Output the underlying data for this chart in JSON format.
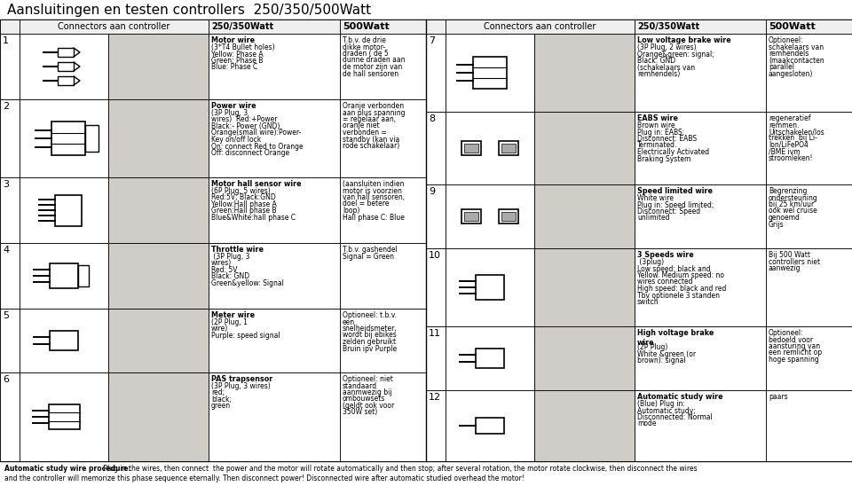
{
  "title": "Aansluitingen en testen controllers  250/350/500Watt",
  "bg_color": "#ffffff",
  "rows_left": [
    {
      "num": "1",
      "desc_250_title": "Motor wire",
      "desc_250_body": "(3*Τ4 Bullet holes)\nYellow: Phase A\nGreen: Phase B\nBlue: Phase C",
      "desc_500": "T.b.v. de drie\ndikke motor-\ndraden ( de 5\ndunne draden aan\nde motor zijn van\nde hall sensoren"
    },
    {
      "num": "2",
      "desc_250_title": "Power wire",
      "desc_250_body": "(3P Plug, 3\nwires)  Red:+Power\nBlack:- Power (GND)\nOrange(small wire):Power-\nKey on/off lock\nOn: connect Red to Orange\nOff: disconnect Orange",
      "desc_500": "Oranje verbonden\naan plus spanning\n= regelaar aan,\noranje niet\nverbonden =\nstandby (kan via\nrode schakelaar)"
    },
    {
      "num": "3",
      "desc_250_title": "Motor hall sensor wire",
      "desc_250_body": "(6P Plug, 5 wires)\nRed:5V; Black:GND\nYellow:Hall phase A\nGreen:Hall phase B\nBlue&White:hall phase C",
      "desc_500": "(aansluiten indien\nmotor is voorzien\nvan hall sensoren,\ndoel = betere\nloop)\nHall phase C: Blue"
    },
    {
      "num": "4",
      "desc_250_title": "Throttle wire",
      "desc_250_body": " (3P Plug, 3\nwires)\nRed: 5V\nBlack: GND\nGreen&yellow: Signal",
      "desc_500": "T.b.v. gashendel\nSignal = Green"
    },
    {
      "num": "5",
      "desc_250_title": "Meter wire",
      "desc_250_body": "(2P Plug, 1\nwire)\nPurple: speed signal",
      "desc_500": "Optioneel: t.b.v.\neen\nsnelheidsmeter,\nwordt bij ebikes\nzelden gebruikt\nBruin ipv Purple"
    },
    {
      "num": "6",
      "desc_250_title": "PAS trapsensor",
      "desc_250_body": "(3P Plug, 3 wires)\nred;\nblack;\ngreen",
      "desc_500": "Optioneel: niet\nstandaard\naanmwezig bij\nombouwsets\n(geldt ook voor\n350W set)"
    }
  ],
  "rows_right": [
    {
      "num": "7",
      "desc_250_title": "Low voltage brake wire",
      "desc_250_body": "(3P Plug, 2 wires)\nOrange&green: signal;\nBlack: GND\n(schakelaars van\nremhendels)",
      "desc_500": "Optioneel:\nschakelaars van\nremhendels\n(maakcontacten\nparallel\naangesloten)"
    },
    {
      "num": "8",
      "desc_250_title": "EABS wire",
      "desc_250_body": "Brown wire\nPlug in: EABS;\nDisconnect: EABS\nTerminated.\nElectrically Activated\nBraking System",
      "desc_500": "regeneratief\nremmen.\nUitschakelen/los\ntrekken  bij Li-\nIon/LiFePO4\n/BME ivm\nstroomleken!"
    },
    {
      "num": "9",
      "desc_250_title": "Speed limited wire",
      "desc_250_body": "White wire\nPlug in: Speed limited;\nDisconnect: Speed\nunlimited",
      "desc_500": "Begrenzing\nondersteuning\nbij 25 km/uur\nook wel cruise\ngenoemd\nGrijs"
    },
    {
      "num": "10",
      "desc_250_title": "3 Speeds wire",
      "desc_250_body": " (3plug)\nLow speed: black and\nYellow. Medium speed: no\nwires connected\nHigh speed: black and red\nTbv optionele 3 standen\nswitch",
      "desc_500": "Bij 500 Watt\ncontrollers niet\naanwezig"
    },
    {
      "num": "11",
      "desc_250_title": "High voltage brake\nwire",
      "desc_250_body": "(2P Plug)\nWhite &green (or\nbrown): signal",
      "desc_500": "Optioneel:\nbedoeld voor\naansturing van\neen remlicht op\nhoge spanning"
    },
    {
      "num": "12",
      "desc_250_title": "Automatic study wire",
      "desc_250_body": "(Blue) Plug in:\nAutomatic study;\nDisconnected: Normal\nmode",
      "desc_500": "paars"
    }
  ],
  "footer_bold": "Automatic study wire procedure:",
  "footer_rest": " Plug in the wires, then connect  the power and the motor will rotate automatically and then stop; after several rotation, the motor rotate clockwise, then disconnect the wires",
  "footer_line2": "and the controller will memorize this phase sequence eternally. Then disconnect power! Disconnected wire after automatic studied overhead the motor!"
}
